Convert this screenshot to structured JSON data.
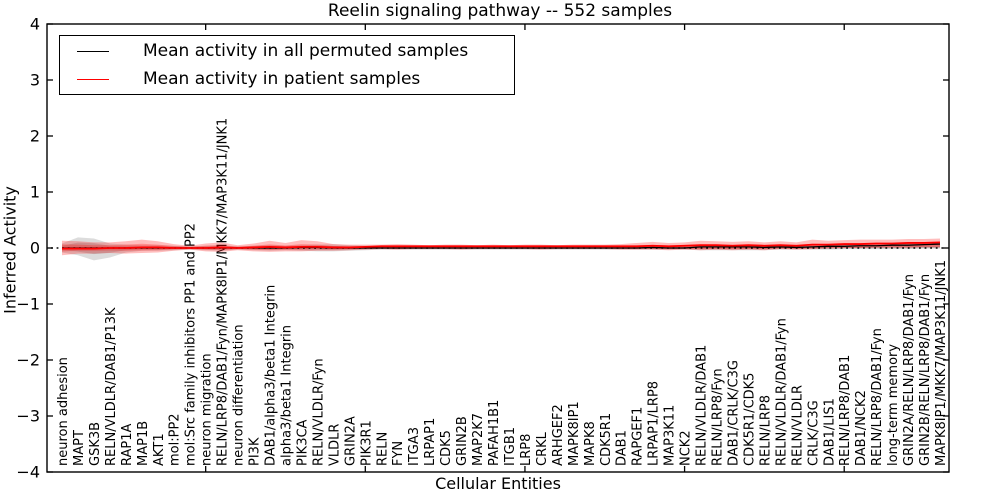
{
  "chart_data": {
    "type": "line",
    "title": "Reelin signaling pathway -- 552 samples",
    "xlabel": "Cellular Entities",
    "ylabel": "Inferred Activity",
    "ylim": [
      -4,
      4
    ],
    "yticks": [
      -4,
      -3,
      -2,
      -1,
      0,
      1,
      2,
      3,
      4
    ],
    "xticks_every": 10,
    "grid": false,
    "legend_position": "upper left",
    "zero_line": 0,
    "categories": [
      "neuron adhesion",
      "MAPT",
      "GSK3B",
      "RELN/VLDLR/DAB1/P13K",
      "RAP1A",
      "MAP1B",
      "AKT1",
      "mol:PP2",
      "mol:Src family inhibitors PP1 and PP2",
      "neuron migration",
      "RELN/LRP8/DAB1/Fyn/MAPK8IP1/MKK7/MAP3K11/JNK1",
      "neuron differentiation",
      "PI3K",
      "DAB1/alpha3/beta1 Integrin",
      "alpha3/beta1 Integrin",
      "PIK3CA",
      "RELN/VLDLR/Fyn",
      "VLDLR",
      "GRIN2A",
      "PIK3R1",
      "RELN",
      "FYN",
      "ITGA3",
      "LRPAP1",
      "CDK5",
      "GRIN2B",
      "MAP2K7",
      "PAFAH1B1",
      "ITGB1",
      "LRP8",
      "CRKL",
      "ARHGEF2",
      "MAPK8IP1",
      "MAPK8",
      "CDK5R1",
      "DAB1",
      "RAPGEF1",
      "LRPAP1/LRP8",
      "MAP3K11",
      "NCK2",
      "RELN/VLDLR/DAB1",
      "RELN/LRP8/Fyn",
      "DAB1/CRLK/C3G",
      "CDK5R1/CDK5",
      "RELN/LRP8",
      "RELN/VLDLR/DAB1/Fyn",
      "RELN/VLDLR",
      "CRLK/C3G",
      "DAB1/LIS1",
      "RELN/LRP8/DAB1",
      "DAB1/NCK2",
      "RELN/LRP8/DAB1/Fyn",
      "long-term memory",
      "GRIN2A/RELN/LRP8/DAB1/Fyn",
      "GRIN2B/RELN/LRP8/DAB1/Fyn",
      "MAPK8IP1/MKK7/MAP3K11/JNK1"
    ],
    "series": [
      {
        "name": "Mean activity in all permuted samples",
        "color": "#000000",
        "values": [
          0,
          0,
          0,
          0,
          0,
          0,
          0,
          0,
          0,
          0,
          0,
          0,
          0,
          0,
          0,
          0.01,
          0.01,
          0,
          0,
          0,
          0,
          0,
          0,
          0,
          0,
          0,
          0,
          0,
          0,
          0,
          0,
          0,
          0,
          0,
          0,
          0,
          0,
          0.01,
          0,
          0,
          0.02,
          0.02,
          0.02,
          0.02,
          0.01,
          0.02,
          0.01,
          0.02,
          0.03,
          0.03,
          0.04,
          0.04,
          0.05,
          0.05,
          0.06,
          0.07
        ]
      },
      {
        "name": "Mean activity in patient samples",
        "color": "#ff0000",
        "values": [
          -0.01,
          -0.01,
          -0.01,
          0,
          0,
          0.01,
          0.01,
          0,
          0,
          0,
          0.01,
          0,
          0.01,
          0.02,
          0.01,
          0.02,
          0.02,
          0.01,
          0.01,
          0.02,
          0.03,
          0.03,
          0.03,
          0.03,
          0.03,
          0.03,
          0.03,
          0.03,
          0.03,
          0.03,
          0.03,
          0.03,
          0.03,
          0.03,
          0.03,
          0.03,
          0.03,
          0.04,
          0.03,
          0.04,
          0.05,
          0.05,
          0.04,
          0.05,
          0.04,
          0.05,
          0.04,
          0.06,
          0.06,
          0.07,
          0.07,
          0.08,
          0.08,
          0.09,
          0.09,
          0.1
        ]
      }
    ],
    "bands": [
      {
        "name": "permuted-samples-range",
        "color": "rgba(40,40,40,0.16)",
        "upper": [
          0.08,
          0.19,
          0.17,
          0.08,
          0.06,
          0.05,
          0.05,
          0.04,
          0.03,
          0.04,
          0.05,
          0.03,
          0.04,
          0.05,
          0.04,
          0.05,
          0.06,
          0.07,
          0.05,
          0.04,
          0.03,
          0.03,
          0.03,
          0.03,
          0.03,
          0.03,
          0.03,
          0.03,
          0.03,
          0.03,
          0.03,
          0.03,
          0.03,
          0.03,
          0.03,
          0.03,
          0.04,
          0.04,
          0.04,
          0.04,
          0.05,
          0.05,
          0.05,
          0.05,
          0.05,
          0.05,
          0.05,
          0.06,
          0.06,
          0.06,
          0.07,
          0.07,
          0.08,
          0.08,
          0.09,
          0.1
        ],
        "lower": [
          -0.08,
          -0.13,
          -0.22,
          -0.17,
          -0.08,
          -0.05,
          -0.05,
          -0.04,
          -0.03,
          -0.04,
          -0.05,
          -0.03,
          -0.04,
          -0.05,
          -0.04,
          -0.05,
          -0.06,
          -0.06,
          -0.05,
          -0.04,
          -0.03,
          -0.03,
          -0.03,
          -0.03,
          -0.03,
          -0.03,
          -0.03,
          -0.03,
          -0.03,
          -0.03,
          -0.03,
          -0.03,
          -0.03,
          -0.03,
          -0.03,
          -0.03,
          -0.03,
          -0.03,
          -0.03,
          -0.03,
          -0.04,
          -0.04,
          -0.04,
          -0.04,
          -0.04,
          -0.03,
          -0.03,
          -0.03,
          -0.03,
          -0.02,
          -0.02,
          -0.02,
          -0.02,
          -0.02,
          -0.01,
          -0.01
        ]
      },
      {
        "name": "patient-samples-range",
        "color": "rgba(255,0,0,0.26)",
        "upper": [
          0.13,
          0.12,
          0.1,
          0.1,
          0.12,
          0.15,
          0.12,
          0.07,
          0.04,
          0.08,
          0.1,
          0.05,
          0.08,
          0.13,
          0.09,
          0.14,
          0.12,
          0.07,
          0.06,
          0.06,
          0.06,
          0.07,
          0.06,
          0.05,
          0.06,
          0.06,
          0.05,
          0.06,
          0.05,
          0.06,
          0.06,
          0.05,
          0.06,
          0.06,
          0.06,
          0.07,
          0.09,
          0.11,
          0.09,
          0.1,
          0.13,
          0.12,
          0.11,
          0.12,
          0.1,
          0.12,
          0.1,
          0.15,
          0.13,
          0.14,
          0.15,
          0.15,
          0.15,
          0.16,
          0.16,
          0.17
        ],
        "lower": [
          -0.13,
          -0.1,
          -0.1,
          -0.09,
          -0.1,
          -0.09,
          -0.08,
          -0.05,
          -0.03,
          -0.06,
          -0.07,
          -0.04,
          -0.06,
          -0.07,
          -0.06,
          -0.06,
          -0.05,
          -0.05,
          -0.04,
          -0.03,
          -0.02,
          -0.03,
          -0.02,
          -0.02,
          -0.02,
          -0.03,
          -0.02,
          -0.02,
          -0.02,
          -0.02,
          -0.03,
          -0.02,
          -0.02,
          -0.02,
          -0.02,
          -0.03,
          -0.03,
          -0.03,
          -0.04,
          -0.03,
          -0.04,
          -0.03,
          -0.04,
          -0.03,
          -0.04,
          -0.02,
          -0.03,
          -0.02,
          -0.01,
          0.0,
          0.0,
          0.01,
          0.01,
          0.01,
          0.02,
          0.02
        ]
      }
    ]
  },
  "legend": {
    "items": [
      {
        "label": "Mean activity in all permuted samples",
        "color": "#000000"
      },
      {
        "label": "Mean activity in patient samples",
        "color": "#ff0000"
      }
    ]
  }
}
